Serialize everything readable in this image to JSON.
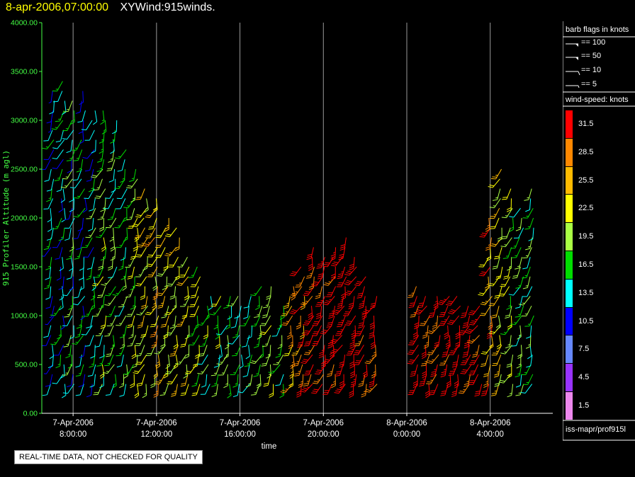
{
  "header": {
    "time": "8-apr-2006,07:00:00",
    "title": "XYWind:915winds."
  },
  "qc_note": "REAL-TIME DATA, NOT CHECKED FOR QUALITY",
  "legend": {
    "barb_title": "barb flags in knots",
    "barbs": [
      {
        "label": "== 100",
        "kind": "pennant"
      },
      {
        "label": "== 50",
        "kind": "pennant"
      },
      {
        "label": "== 10",
        "kind": "full"
      },
      {
        "label": "== 5",
        "kind": "half"
      }
    ],
    "speed_title": "wind-speed: knots",
    "speed_bins": [
      {
        "label": "31.5",
        "color": "#ff0000"
      },
      {
        "label": "28.5",
        "color": "#ff8800"
      },
      {
        "label": "25.5",
        "color": "#ffbb00"
      },
      {
        "label": "22.5",
        "color": "#ffff00"
      },
      {
        "label": "19.5",
        "color": "#aaff44"
      },
      {
        "label": "16.5",
        "color": "#00dd00"
      },
      {
        "label": "13.5",
        "color": "#00ffff"
      },
      {
        "label": "10.5",
        "color": "#0000ff"
      },
      {
        "label": "7.5",
        "color": "#6688ff"
      },
      {
        "label": "4.5",
        "color": "#9933ff"
      },
      {
        "label": "1.5",
        "color": "#ee88ee"
      }
    ],
    "source": "iss-mapr/prof915l"
  },
  "chart_data": {
    "type": "scatter",
    "xlabel": "time",
    "ylabel": "915 Profiler Altitude (m agl)",
    "ylim": [
      0,
      4000
    ],
    "yticks": [
      "0.00",
      "500.00",
      "1000.00",
      "1500.00",
      "2000.00",
      "2500.00",
      "3000.00",
      "3500.00",
      "4000.00"
    ],
    "xlim": [
      "2006-04-07 06:30",
      "2006-04-08 07:00"
    ],
    "xticks": [
      {
        "t": "2006-04-07 08:00",
        "line1": "7-Apr-2006",
        "line2": "8:00:00"
      },
      {
        "t": "2006-04-07 12:00",
        "line1": "7-Apr-2006",
        "line2": "12:00:00"
      },
      {
        "t": "2006-04-07 16:00",
        "line1": "7-Apr-2006",
        "line2": "16:00:00"
      },
      {
        "t": "2006-04-07 20:00",
        "line1": "7-Apr-2006",
        "line2": "20:00:00"
      },
      {
        "t": "2006-04-08 00:00",
        "line1": "8-Apr-2006",
        "line2": "0:00:00"
      },
      {
        "t": "2006-04-08 04:00",
        "line1": "8-Apr-2006",
        "line2": "4:00:00"
      }
    ],
    "grid_x": true,
    "legend_position": "right",
    "series": [
      {
        "time": "2006-04-07 07:00",
        "top": 3300,
        "speed": 13
      },
      {
        "time": "2006-04-07 07:30",
        "top": 3400,
        "speed": 14
      },
      {
        "time": "2006-04-07 08:00",
        "top": 3200,
        "speed": 15
      },
      {
        "time": "2006-04-07 08:30",
        "top": 3300,
        "speed": 14
      },
      {
        "time": "2006-04-07 09:00",
        "top": 3100,
        "speed": 15
      },
      {
        "time": "2006-04-07 09:30",
        "top": 3100,
        "speed": 18
      },
      {
        "time": "2006-04-07 10:00",
        "top": 3000,
        "speed": 17
      },
      {
        "time": "2006-04-07 10:30",
        "top": 2700,
        "speed": 16
      },
      {
        "time": "2006-04-07 11:00",
        "top": 2500,
        "speed": 20
      },
      {
        "time": "2006-04-07 11:30",
        "top": 2300,
        "speed": 22
      },
      {
        "time": "2006-04-07 12:00",
        "top": 2200,
        "speed": 24
      },
      {
        "time": "2006-04-07 12:30",
        "top": 2000,
        "speed": 22
      },
      {
        "time": "2006-04-07 13:00",
        "top": 1900,
        "speed": 23
      },
      {
        "time": "2006-04-07 13:30",
        "top": 1600,
        "speed": 22
      },
      {
        "time": "2006-04-07 14:00",
        "top": 1500,
        "speed": 20
      },
      {
        "time": "2006-04-07 14:30",
        "top": 1200,
        "speed": 18
      },
      {
        "time": "2006-04-07 15:00",
        "top": 1200,
        "speed": 18
      },
      {
        "time": "2006-04-07 15:30",
        "top": 1200,
        "speed": 16
      },
      {
        "time": "2006-04-07 16:00",
        "top": 1200,
        "speed": 16
      },
      {
        "time": "2006-04-07 16:30",
        "top": 1250,
        "speed": 16
      },
      {
        "time": "2006-04-07 17:00",
        "top": 1300,
        "speed": 18
      },
      {
        "time": "2006-04-07 17:30",
        "top": 1300,
        "speed": 20
      },
      {
        "time": "2006-04-07 18:00",
        "top": 1150,
        "speed": 18
      },
      {
        "time": "2006-04-07 18:30",
        "top": 1300,
        "speed": 26
      },
      {
        "time": "2006-04-07 19:00",
        "top": 1500,
        "speed": 30
      },
      {
        "time": "2006-04-07 19:30",
        "top": 1700,
        "speed": 32
      },
      {
        "time": "2006-04-07 20:00",
        "top": 1600,
        "speed": 33
      },
      {
        "time": "2006-04-07 20:30",
        "top": 1750,
        "speed": 33
      },
      {
        "time": "2006-04-07 21:00",
        "top": 1800,
        "speed": 34
      },
      {
        "time": "2006-04-07 21:30",
        "top": 1650,
        "speed": 33
      },
      {
        "time": "2006-04-07 22:00",
        "top": 1450,
        "speed": 33
      },
      {
        "time": "2006-04-07 22:30",
        "top": 1200,
        "speed": 32
      },
      {
        "time": "2006-04-08 00:30",
        "top": 1300,
        "speed": 32
      },
      {
        "time": "2006-04-08 01:00",
        "top": 1250,
        "speed": 32
      },
      {
        "time": "2006-04-08 01:30",
        "top": 1200,
        "speed": 32
      },
      {
        "time": "2006-04-08 02:00",
        "top": 1200,
        "speed": 33
      },
      {
        "time": "2006-04-08 02:30",
        "top": 1200,
        "speed": 33
      },
      {
        "time": "2006-04-08 03:00",
        "top": 1150,
        "speed": 32
      },
      {
        "time": "2006-04-08 03:30",
        "top": 1100,
        "speed": 32
      },
      {
        "time": "2006-04-08 04:00",
        "top": 2000,
        "speed": 27
      },
      {
        "time": "2006-04-08 04:30",
        "top": 2500,
        "speed": 23
      },
      {
        "time": "2006-04-08 05:00",
        "top": 2300,
        "speed": 20
      },
      {
        "time": "2006-04-08 05:30",
        "top": 2100,
        "speed": 17
      },
      {
        "time": "2006-04-08 06:00",
        "top": 2300,
        "speed": 16
      }
    ]
  }
}
